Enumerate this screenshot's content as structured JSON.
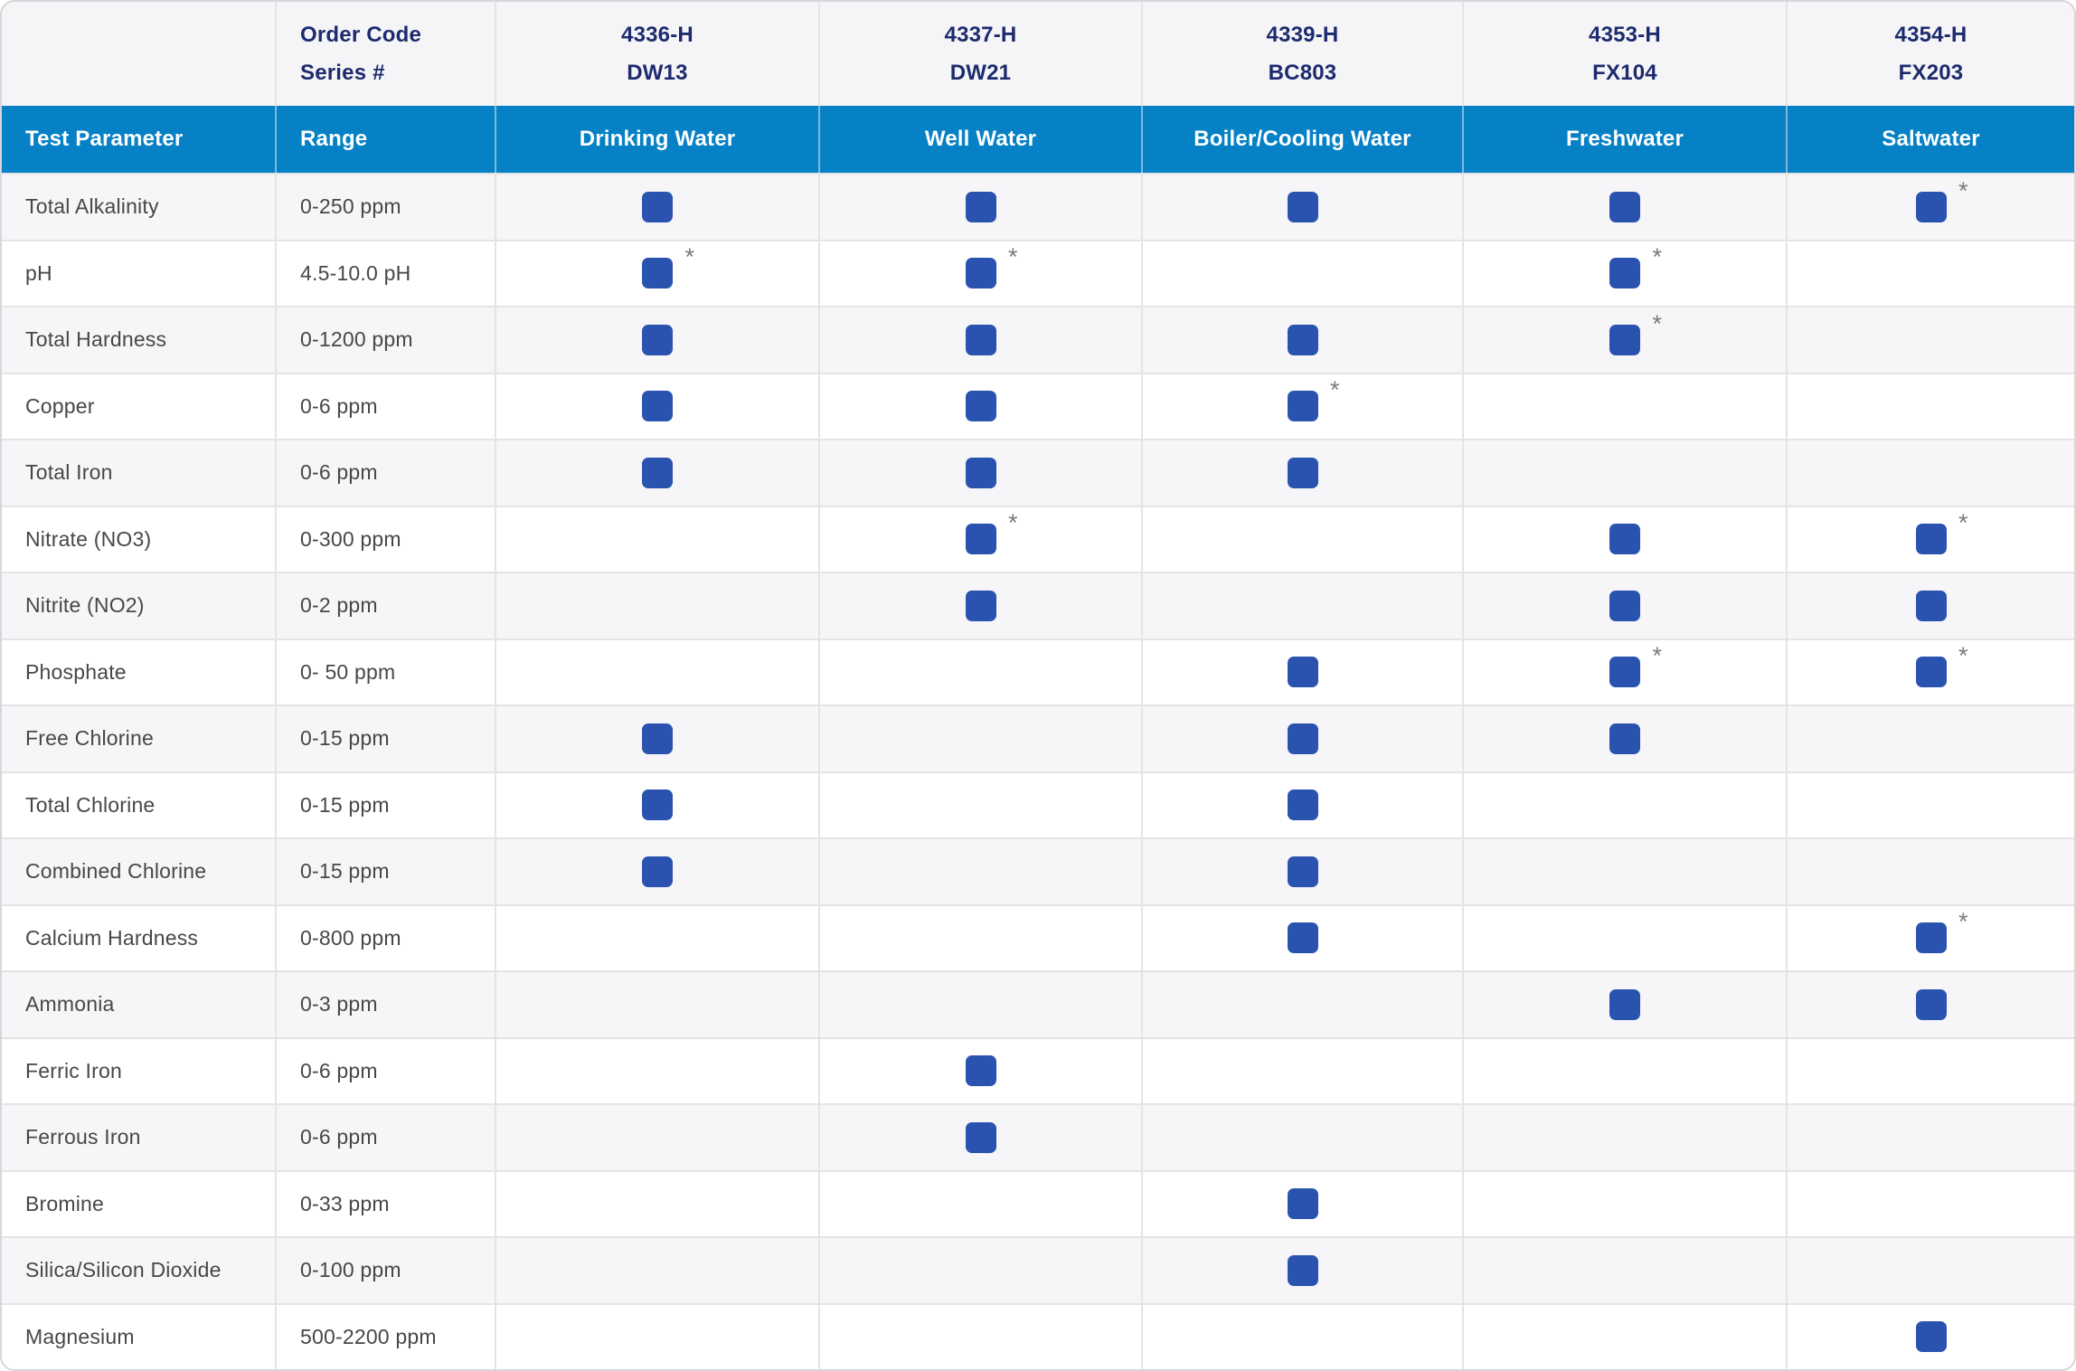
{
  "chart_data": {
    "type": "table",
    "header_top": {
      "corner": "",
      "order_code_line1": "Order Code",
      "order_code_line2": "Series #",
      "products": [
        {
          "code": "4336-H",
          "series": "DW13",
          "water_type": "Drinking Water"
        },
        {
          "code": "4337-H",
          "series": "DW21",
          "water_type": "Well Water"
        },
        {
          "code": "4339-H",
          "series": "BC803",
          "water_type": "Boiler/Cooling Water"
        },
        {
          "code": "4353-H",
          "series": "FX104",
          "water_type": "Freshwater"
        },
        {
          "code": "4354-H",
          "series": "FX203",
          "water_type": "Saltwater"
        }
      ]
    },
    "header_labels": {
      "parameter": "Test Parameter",
      "range": "Range"
    },
    "rows": [
      {
        "parameter": "Total Alkalinity",
        "range": "0-250 ppm",
        "checks": [
          "check",
          "check",
          "check",
          "check",
          "check*"
        ]
      },
      {
        "parameter": "pH",
        "range": "4.5-10.0 pH",
        "checks": [
          "check*",
          "check*",
          "",
          "check*",
          ""
        ]
      },
      {
        "parameter": "Total Hardness",
        "range": "0-1200 ppm",
        "checks": [
          "check",
          "check",
          "check",
          "check*",
          ""
        ]
      },
      {
        "parameter": "Copper",
        "range": "0-6 ppm",
        "checks": [
          "check",
          "check",
          "check*",
          "",
          ""
        ]
      },
      {
        "parameter": "Total Iron",
        "range": "0-6 ppm",
        "checks": [
          "check",
          "check",
          "check",
          "",
          ""
        ]
      },
      {
        "parameter": "Nitrate (NO3)",
        "range": "0-300 ppm",
        "checks": [
          "",
          "check*",
          "",
          "check",
          "check*"
        ]
      },
      {
        "parameter": "Nitrite (NO2)",
        "range": "0-2 ppm",
        "checks": [
          "",
          "check",
          "",
          "check",
          "check"
        ]
      },
      {
        "parameter": "Phosphate",
        "range": "0- 50 ppm",
        "checks": [
          "",
          "",
          "check",
          "check*",
          "check*"
        ]
      },
      {
        "parameter": "Free Chlorine",
        "range": "0-15 ppm",
        "checks": [
          "check",
          "",
          "check",
          "check",
          ""
        ]
      },
      {
        "parameter": "Total Chlorine",
        "range": "0-15 ppm",
        "checks": [
          "check",
          "",
          "check",
          "",
          ""
        ]
      },
      {
        "parameter": "Combined Chlorine",
        "range": "0-15 ppm",
        "checks": [
          "check",
          "",
          "check",
          "",
          ""
        ]
      },
      {
        "parameter": "Calcium Hardness",
        "range": "0-800 ppm",
        "checks": [
          "",
          "",
          "check",
          "",
          "check*"
        ]
      },
      {
        "parameter": "Ammonia",
        "range": "0-3 ppm",
        "checks": [
          "",
          "",
          "",
          "check",
          "check"
        ]
      },
      {
        "parameter": "Ferric Iron",
        "range": "0-6 ppm",
        "checks": [
          "",
          "check",
          "",
          "",
          ""
        ]
      },
      {
        "parameter": "Ferrous Iron",
        "range": "0-6 ppm",
        "checks": [
          "",
          "check",
          "",
          "",
          ""
        ]
      },
      {
        "parameter": "Bromine",
        "range": "0-33 ppm",
        "checks": [
          "",
          "",
          "check",
          "",
          ""
        ]
      },
      {
        "parameter": "Silica/Silicon Dioxide",
        "range": "0-100 ppm",
        "checks": [
          "",
          "",
          "check",
          "",
          ""
        ]
      },
      {
        "parameter": "Magnesium",
        "range": "500-2200 ppm",
        "checks": [
          "",
          "",
          "",
          "",
          "check"
        ]
      }
    ],
    "icons": {
      "check": "check-square-icon",
      "footnote": "*"
    },
    "colors": {
      "header_blue": "#0681c5",
      "check_blue": "#2a53b0",
      "navy_text": "#1d2b6e",
      "stripe_gray": "#f6f6f8",
      "border_gray": "#e4e4e7",
      "asterisk_gray": "#7b7b7b"
    }
  }
}
